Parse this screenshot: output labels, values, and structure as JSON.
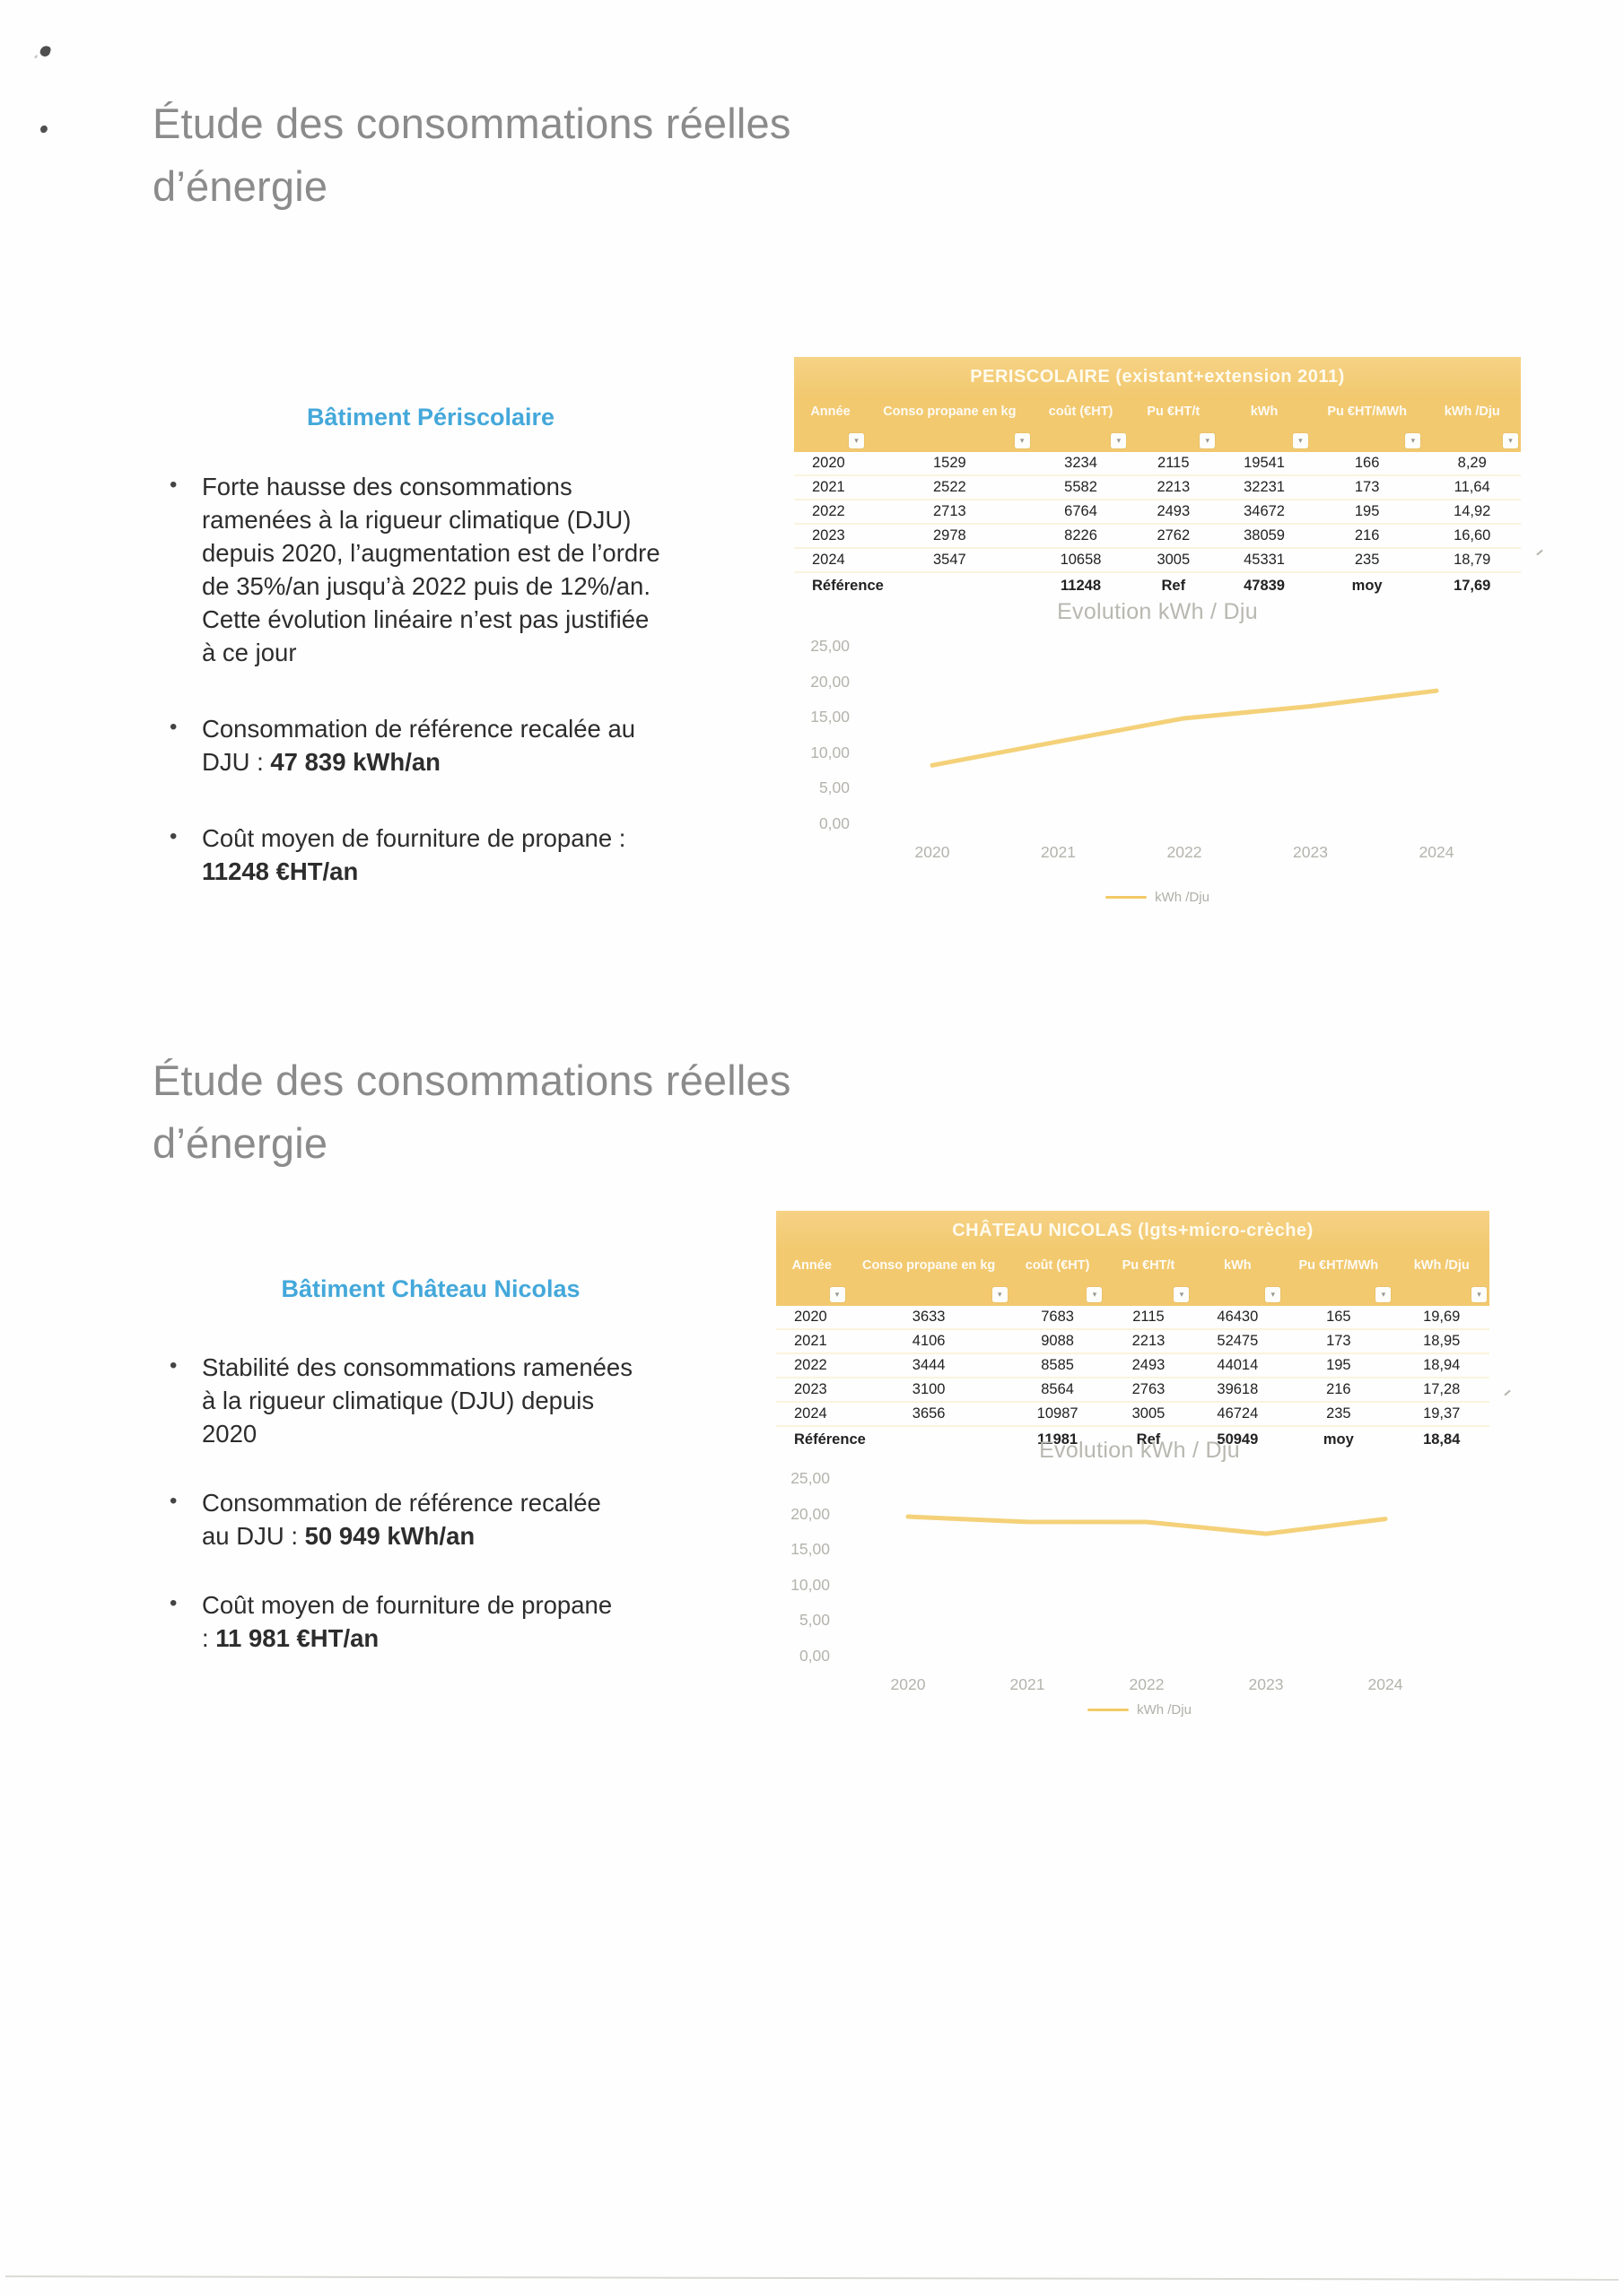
{
  "slides": [
    {
      "title": "Étude des consommations réelles\nd’énergie",
      "heading": "Bâtiment Périscolaire",
      "bullets": [
        {
          "text": "Forte hausse des consommations\nramenées à la rigueur climatique (DJU)\ndepuis 2020, l’augmentation est de l’ordre\nde 35%/an jusqu’à 2022 puis de 12%/an.\nCette évolution linéaire n’est pas justifiée\nà ce jour",
          "bold": ""
        },
        {
          "text": "Consommation de référence recalée au\nDJU : ",
          "bold": "47 839 kWh/an"
        },
        {
          "text": "Coût moyen de fourniture de propane :\n",
          "bold": "11248 €HT/an"
        }
      ],
      "table": {
        "title": "PERISCOLAIRE (existant+extension 2011)",
        "columns": [
          "Année",
          "Conso propane en kg",
          "coût (€HT)",
          "Pu €HT/t",
          "kWh",
          "Pu €HT/MWh",
          "kWh /Dju"
        ],
        "rows": [
          [
            "2020",
            "1529",
            "3234",
            "2115",
            "19541",
            "166",
            "8,29"
          ],
          [
            "2021",
            "2522",
            "5582",
            "2213",
            "32231",
            "173",
            "11,64"
          ],
          [
            "2022",
            "2713",
            "6764",
            "2493",
            "34672",
            "195",
            "14,92"
          ],
          [
            "2023",
            "2978",
            "8226",
            "2762",
            "38059",
            "216",
            "16,60"
          ],
          [
            "2024",
            "3547",
            "10658",
            "3005",
            "45331",
            "235",
            "18,79"
          ]
        ],
        "reference_row": [
          "Référence",
          "",
          "11248",
          "Ref",
          "47839",
          "moy",
          "17,69"
        ]
      }
    },
    {
      "title": "Étude des consommations réelles\nd’énergie",
      "heading": "Bâtiment Château Nicolas",
      "bullets": [
        {
          "text": "Stabilité des consommations ramenées\nà la rigueur climatique (DJU) depuis\n2020",
          "bold": ""
        },
        {
          "text": "Consommation de référence recalée\nau DJU : ",
          "bold": "50 949 kWh/an"
        },
        {
          "text": "Coût moyen de fourniture de propane\n: ",
          "bold": "11 981 €HT/an"
        }
      ],
      "table": {
        "title": "CHÂTEAU NICOLAS (lgts+micro-crèche)",
        "columns": [
          "Année",
          "Conso propane en kg",
          "coût (€HT)",
          "Pu €HT/t",
          "kWh",
          "Pu €HT/MWh",
          "kWh /Dju"
        ],
        "rows": [
          [
            "2020",
            "3633",
            "7683",
            "2115",
            "46430",
            "165",
            "19,69"
          ],
          [
            "2021",
            "4106",
            "9088",
            "2213",
            "52475",
            "173",
            "18,95"
          ],
          [
            "2022",
            "3444",
            "8585",
            "2493",
            "44014",
            "195",
            "18,94"
          ],
          [
            "2023",
            "3100",
            "8564",
            "2763",
            "39618",
            "216",
            "17,28"
          ],
          [
            "2024",
            "3656",
            "10987",
            "3005",
            "46724",
            "235",
            "19,37"
          ]
        ],
        "reference_row": [
          "Référence",
          "",
          "11981",
          "Ref",
          "50949",
          "moy",
          "18,84"
        ]
      }
    }
  ],
  "chart_data": [
    {
      "type": "line",
      "title": "Evolution kWh / Dju",
      "categories": [
        "2020",
        "2021",
        "2022",
        "2023",
        "2024"
      ],
      "series": [
        {
          "name": "kWh /Dju",
          "values": [
            8.29,
            11.64,
            14.92,
            16.6,
            18.79
          ]
        }
      ],
      "xlabel": "",
      "ylabel": "",
      "ylim": [
        0,
        25
      ],
      "ytick_labels": [
        "0,00",
        "5,00",
        "10,00",
        "15,00",
        "20,00",
        "25,00"
      ],
      "grid": false,
      "legend": "kWh /Dju",
      "legend_position": "bottom",
      "line_color": "#f2cb66"
    },
    {
      "type": "line",
      "title": "Evolution kWh / Dju",
      "categories": [
        "2020",
        "2021",
        "2022",
        "2023",
        "2024"
      ],
      "series": [
        {
          "name": "kWh /Dju",
          "values": [
            19.69,
            18.95,
            18.94,
            17.28,
            19.37
          ]
        }
      ],
      "xlabel": "",
      "ylabel": "",
      "ylim": [
        0,
        25
      ],
      "ytick_labels": [
        "0,00",
        "5,00",
        "10,00",
        "15,00",
        "20,00",
        "25,00"
      ],
      "grid": false,
      "legend": "kWh /Dju",
      "legend_position": "bottom",
      "line_color": "#f2cb66"
    }
  ],
  "colors": {
    "table_banner_orange": "#f2c96f",
    "heading_blue": "#44a8da",
    "chart_line_yellow": "#f2cb66",
    "title_gray": "#8b8b8b"
  }
}
